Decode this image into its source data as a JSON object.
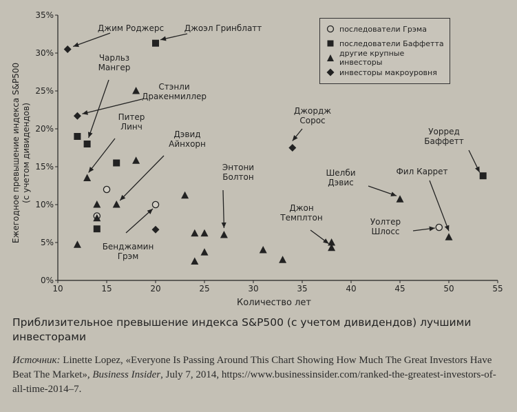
{
  "chart_data": {
    "type": "scatter",
    "title": "",
    "xlabel": "Количество лет",
    "ylabel": "Ежегодное превышение индекса S&P500 (с учетом дивидендов)",
    "xlim": [
      10,
      55
    ],
    "ylim": [
      0,
      35
    ],
    "x_ticks": [
      "10",
      "15",
      "20",
      "25",
      "30",
      "35",
      "40",
      "45",
      "50",
      "55"
    ],
    "y_ticks": [
      "0%",
      "5%",
      "10%",
      "15%",
      "20%",
      "25%",
      "30%",
      "35%"
    ],
    "legend_position": "top-right",
    "series": [
      {
        "name": "последователи Грэма",
        "marker": "circle-open",
        "points": [
          [
            14,
            8.5
          ],
          [
            15,
            12
          ],
          [
            20,
            10
          ],
          [
            49,
            7
          ]
        ]
      },
      {
        "name": "последователи Баффетта",
        "marker": "square",
        "points": [
          [
            12,
            19
          ],
          [
            13,
            18
          ],
          [
            14,
            6.8
          ],
          [
            16,
            15.5
          ],
          [
            20,
            31.3
          ],
          [
            53.5,
            13.8
          ]
        ]
      },
      {
        "name": "другие крупные инвесторы",
        "marker": "triangle",
        "points": [
          [
            12,
            4.7
          ],
          [
            13,
            13.5
          ],
          [
            14,
            10
          ],
          [
            14,
            8.2
          ],
          [
            16,
            10
          ],
          [
            18,
            25
          ],
          [
            18,
            15.8
          ],
          [
            23,
            11.2
          ],
          [
            24,
            6.2
          ],
          [
            24,
            2.5
          ],
          [
            25,
            6.2
          ],
          [
            25,
            3.7
          ],
          [
            27,
            6
          ],
          [
            31,
            4
          ],
          [
            33,
            2.7
          ],
          [
            38,
            5
          ],
          [
            38,
            4.3
          ],
          [
            45,
            10.7
          ],
          [
            50,
            5.7
          ]
        ]
      },
      {
        "name": "инвесторы макроуровня",
        "marker": "diamond",
        "points": [
          [
            11,
            30.5
          ],
          [
            12,
            21.7
          ],
          [
            20,
            6.7
          ],
          [
            34,
            17.5
          ]
        ]
      }
    ],
    "annotations": [
      {
        "label": "Джим Роджерс",
        "x": 11,
        "y": 30.5
      },
      {
        "label": "Джоэл Гринблатт",
        "x": 20,
        "y": 31.3
      },
      {
        "label": "Чарльз Мангер",
        "x": 13,
        "y": 18
      },
      {
        "label": "Стэнли Дракенмиллер",
        "x": 12,
        "y": 21.7
      },
      {
        "label": "Питер Линч",
        "x": 13,
        "y": 13.5
      },
      {
        "label": "Дэвид Айнхорн",
        "x": 16,
        "y": 10
      },
      {
        "label": "Бенджамин Грэм",
        "x": 20,
        "y": 10
      },
      {
        "label": "Энтони Болтон",
        "x": 27,
        "y": 6
      },
      {
        "label": "Джордж Сорос",
        "x": 34,
        "y": 17.5
      },
      {
        "label": "Джон Темплтон",
        "x": 38,
        "y": 4.3
      },
      {
        "label": "Шелби Дэвис",
        "x": 45,
        "y": 10.7
      },
      {
        "label": "Фил Каррет",
        "x": 50,
        "y": 5.7
      },
      {
        "label": "Уолтер Шлосс",
        "x": 49,
        "y": 7
      },
      {
        "label": "Уорред Баффетт",
        "x": 53.5,
        "y": 13.8
      }
    ]
  },
  "caption": "Приблизительное превышение индекса S&P500 (с учетом дивидендов) лучшими инвесторами",
  "source": {
    "label": "Источник:",
    "text": " Linette Lopez, «Everyone Is Passing Around This Chart Showing How Much The Great Investors Have Beat The Market», ",
    "journal": "Business Insider",
    "rest": ", July 7, 2014, https://www.businessinsider.com/ranked-the-greatest-investors-of-all-time-2014–7."
  }
}
